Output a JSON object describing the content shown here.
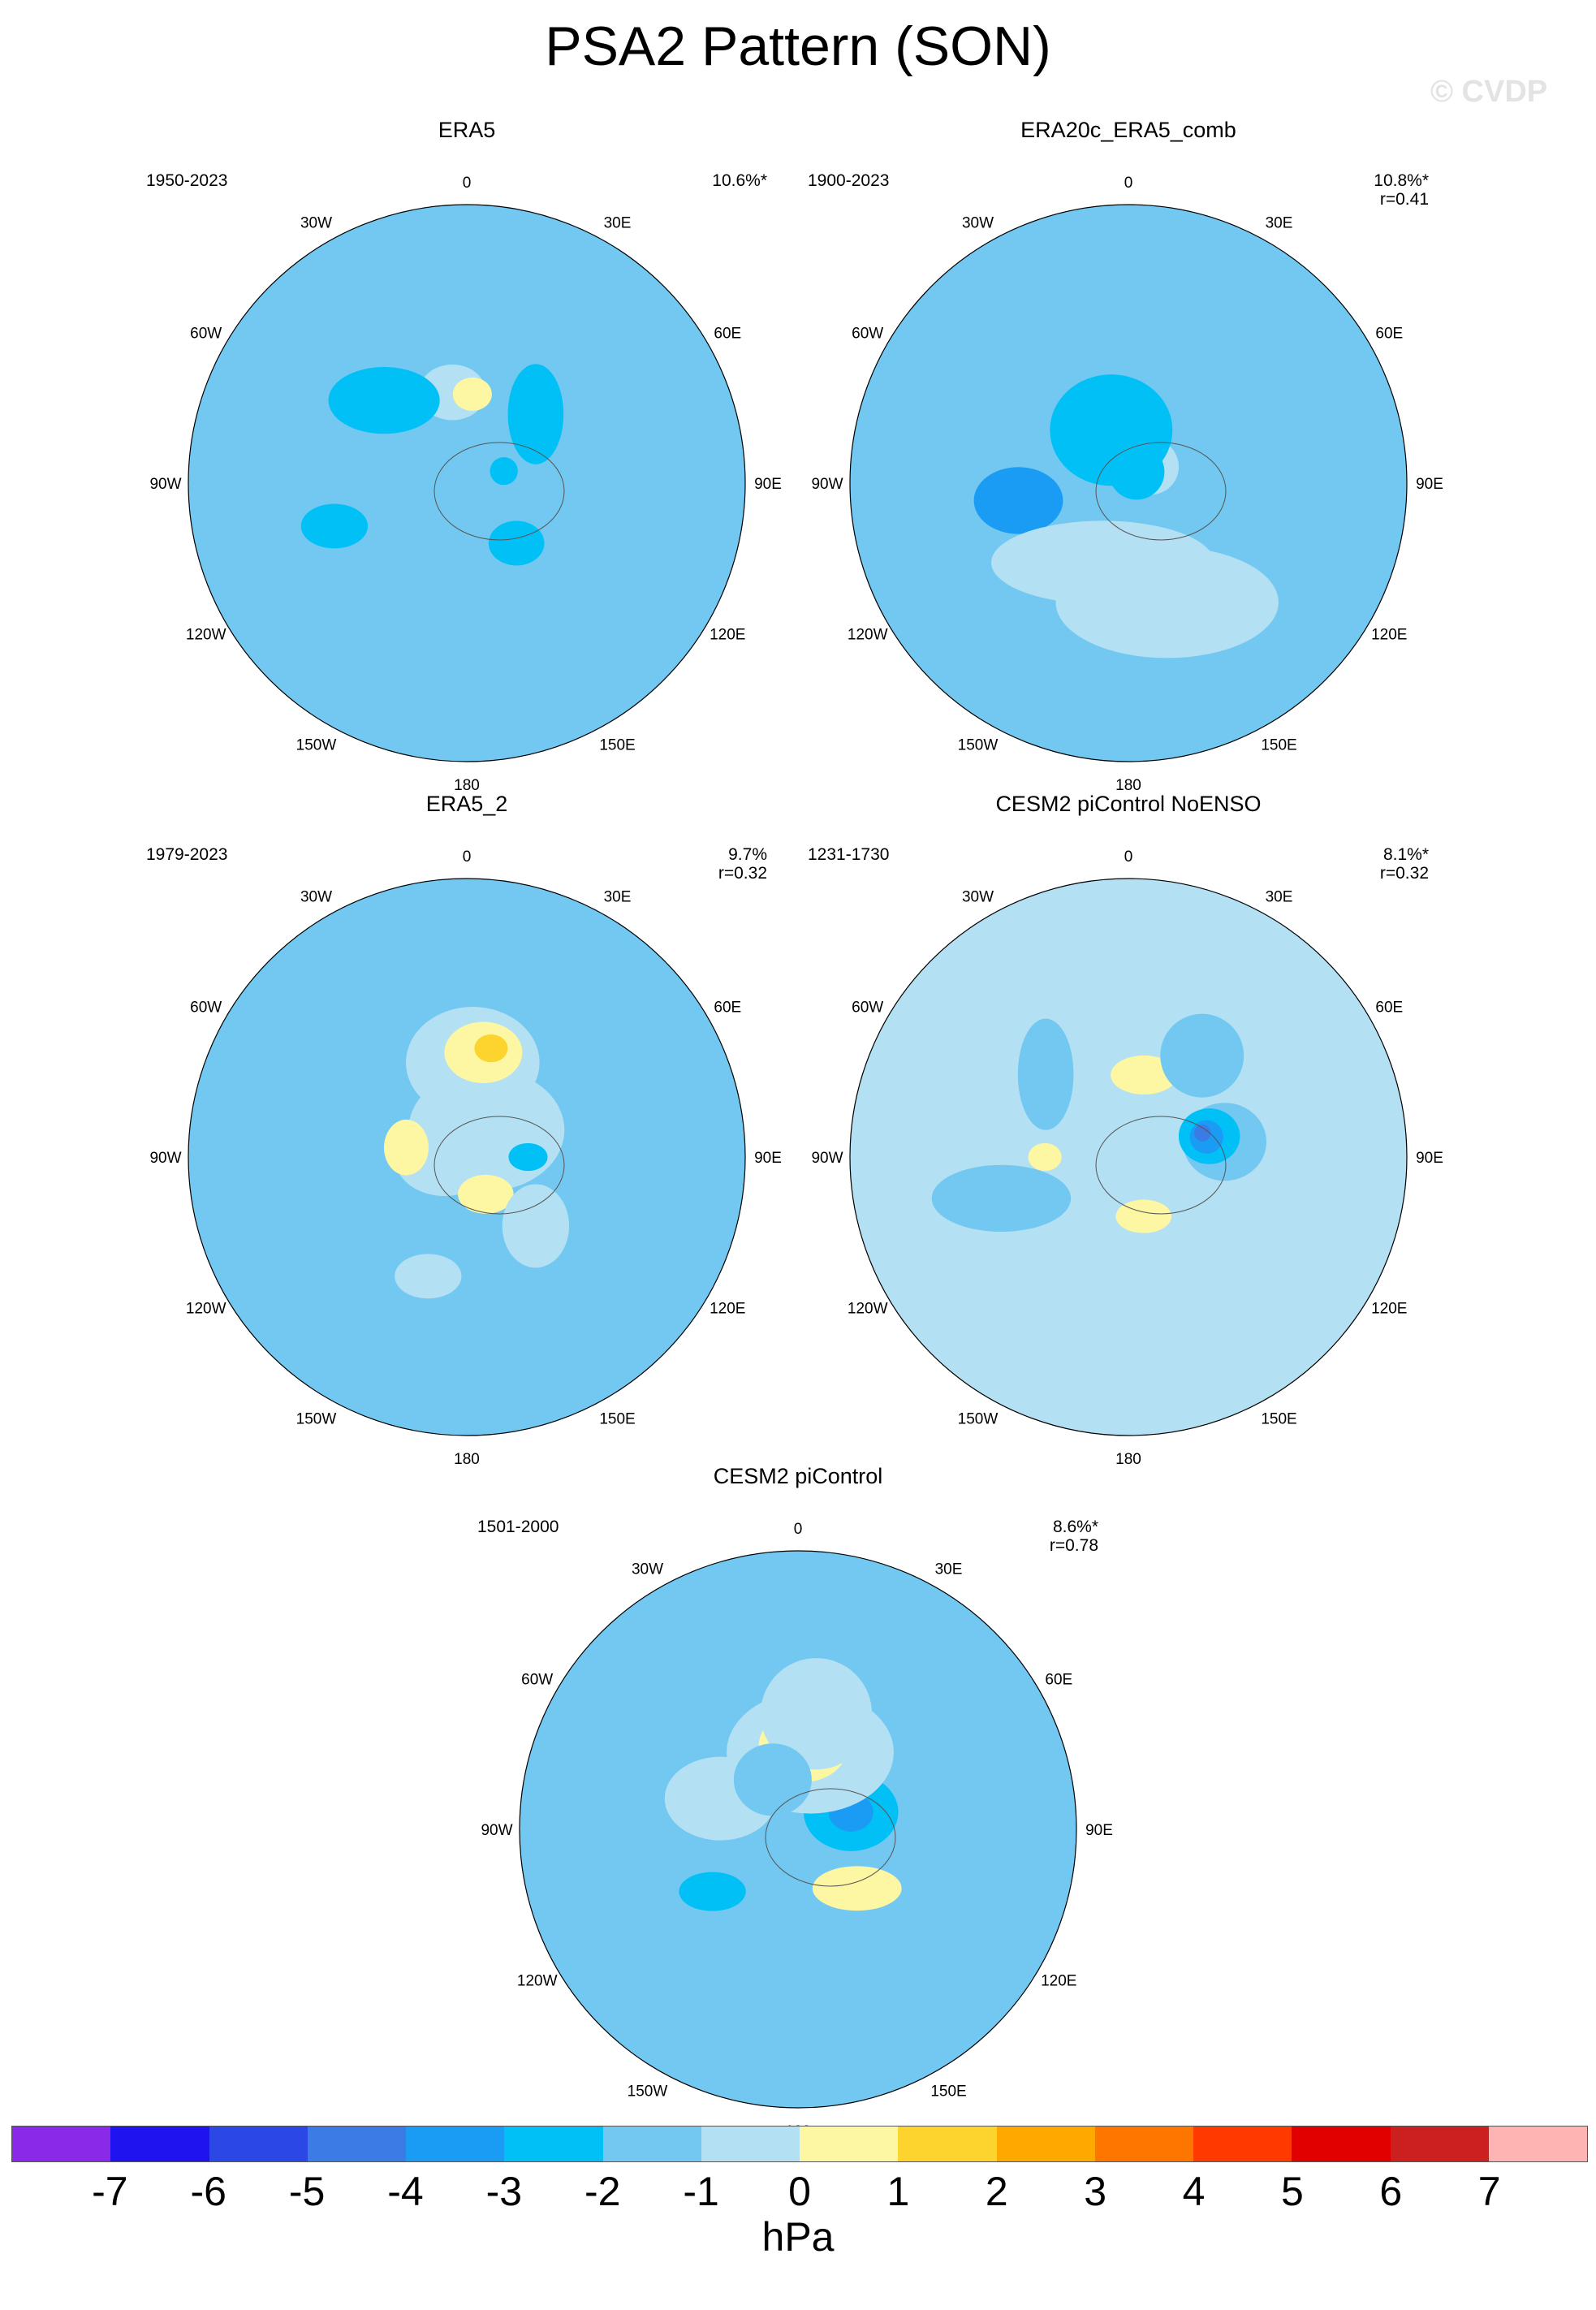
{
  "title": "PSA2 Pattern (SON)",
  "watermark": "© CVDP",
  "longitude_labels": [
    "0",
    "30E",
    "60E",
    "90E",
    "120E",
    "150E",
    "180",
    "150W",
    "120W",
    "90W",
    "60W",
    "30W"
  ],
  "panels": [
    {
      "title": "ERA5",
      "period": "1950-2023",
      "stat": "10.6%*",
      "field": {
        "bg": 3,
        "blobs": [
          [
            0.28,
            0.1,
            0.22,
            0.24,
            3
          ],
          [
            0.2,
            0.75,
            0.22,
            0.16,
            3
          ],
          [
            0.33,
            -0.05,
            0.12,
            0.1,
            4
          ],
          [
            0.28,
            0.78,
            0.1,
            0.08,
            2
          ],
          [
            0.14,
            0.4,
            0.05,
            0.05,
            2
          ],
          [
            0.5,
            -0.6,
            0.12,
            0.08,
            2
          ],
          [
            0.42,
            -0.25,
            0.2,
            0.12,
            2
          ],
          [
            0.22,
            -0.72,
            0.16,
            0.1,
            3
          ],
          [
            0.35,
            0.25,
            0.1,
            0.18,
            2
          ],
          [
            0.32,
            0.02,
            0.07,
            0.06,
            5
          ]
        ]
      }
    },
    {
      "title": "ERA20c_ERA5_comb",
      "period": "1900-2023",
      "stat": "10.8%*\n r=0.41",
      "field": {
        "bg": 3,
        "blobs": [
          [
            0.1,
            0.3,
            0.1,
            0.1,
            4
          ],
          [
            0.2,
            -0.1,
            0.22,
            0.2,
            2
          ],
          [
            0.4,
            -0.55,
            0.16,
            0.12,
            1
          ],
          [
            0.45,
            0.9,
            0.4,
            0.2,
            4
          ],
          [
            0.3,
            -0.9,
            0.4,
            0.15,
            4
          ],
          [
            0.05,
            0.2,
            0.1,
            0.1,
            2
          ]
        ]
      }
    },
    {
      "title": "ERA5_2",
      "period": "1979-2023",
      "stat": "9.7%\n r=0.32",
      "field": {
        "bg": 3,
        "blobs": [
          [
            0.12,
            0.2,
            0.28,
            0.22,
            4
          ],
          [
            0.08,
            -0.5,
            0.18,
            0.14,
            4
          ],
          [
            0.34,
            0.02,
            0.24,
            0.2,
            4
          ],
          [
            0.38,
            0.05,
            0.14,
            0.11,
            5
          ],
          [
            0.4,
            0.07,
            0.06,
            0.05,
            6
          ],
          [
            0.15,
            0.85,
            0.1,
            0.07,
            5
          ],
          [
            0.22,
            -0.45,
            0.08,
            0.1,
            5
          ],
          [
            0.22,
            0.5,
            0.07,
            0.05,
            2
          ],
          [
            0.35,
            0.75,
            0.12,
            0.15,
            4
          ],
          [
            0.45,
            -0.9,
            0.12,
            0.08,
            4
          ]
        ]
      }
    },
    {
      "title": "CESM2 piControl NoENSO",
      "period": "1231-1730",
      "stat": "8.1%*\n r=0.32",
      "field": {
        "bg": 4,
        "blobs": [
          [
            0.35,
            0.45,
            0.15,
            0.14,
            3
          ],
          [
            0.3,
            0.42,
            0.11,
            0.1,
            2
          ],
          [
            0.29,
            0.42,
            0.06,
            0.06,
            1
          ],
          [
            0.28,
            0.4,
            0.03,
            0.03,
            0
          ],
          [
            0.22,
            0.92,
            0.1,
            0.06,
            5
          ],
          [
            0.3,
            0.06,
            0.12,
            0.07,
            5
          ],
          [
            0.3,
            -0.5,
            0.06,
            0.05,
            5
          ],
          [
            0.48,
            -0.6,
            0.25,
            0.12,
            3
          ],
          [
            0.45,
            0.2,
            0.15,
            0.15,
            3
          ],
          [
            0.42,
            -0.25,
            0.1,
            0.2,
            3
          ]
        ]
      }
    },
    {
      "title": "CESM2 piControl",
      "period": "1501-2000",
      "stat": "8.6%*\n r=0.78",
      "field": {
        "bg": 3,
        "blobs": [
          [
            0.2,
            0.4,
            0.17,
            0.14,
            2
          ],
          [
            0.2,
            0.4,
            0.08,
            0.07,
            1
          ],
          [
            0.28,
            0.05,
            0.3,
            0.22,
            4
          ],
          [
            0.3,
            0.02,
            0.16,
            0.13,
            5
          ],
          [
            0.3,
            0.02,
            0.07,
            0.06,
            6
          ],
          [
            0.3,
            0.75,
            0.16,
            0.08,
            5
          ],
          [
            0.42,
            0.05,
            0.2,
            0.2,
            4
          ],
          [
            0.3,
            -0.38,
            0.2,
            0.15,
            4
          ],
          [
            0.38,
            -0.7,
            0.12,
            0.07,
            2
          ],
          [
            0.2,
            -0.15,
            0.14,
            0.13,
            3
          ]
        ]
      }
    }
  ],
  "colorbar": {
    "colors": [
      "#8a2ae8",
      "#1f13f0",
      "#2b47e6",
      "#3a7be6",
      "#1a9cf5",
      "#00c0f5",
      "#72c8f0",
      "#b4e0f3",
      "#fdf7a3",
      "#fdd42d",
      "#fea800",
      "#fe7500",
      "#fe3a00",
      "#e00000",
      "#cc1f1f",
      "#ffb4b4"
    ],
    "tick_labels": [
      "-7",
      "-6",
      "-5",
      "-4",
      "-3",
      "-2",
      "-1",
      "0",
      "1",
      "2",
      "3",
      "4",
      "5",
      "6",
      "7"
    ],
    "unit": "hPa"
  }
}
